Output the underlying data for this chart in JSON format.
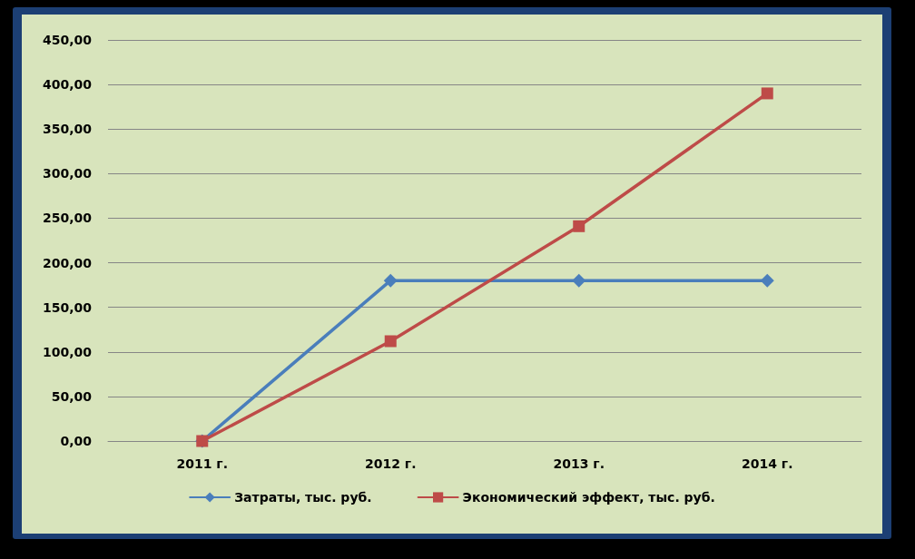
{
  "chart_data": {
    "type": "line",
    "categories": [
      "2011 г.",
      "2012 г.",
      "2013 г.",
      "2014 г."
    ],
    "series": [
      {
        "name": "Затраты, тыс. руб.",
        "color": "#4a7ebb",
        "marker": "diamond",
        "values": [
          0,
          180,
          180,
          180
        ]
      },
      {
        "name": "Экономический эффект, тыс. руб.",
        "color": "#be4b48",
        "marker": "square",
        "values": [
          0,
          112,
          241,
          390
        ]
      }
    ],
    "ylim": [
      0,
      450
    ],
    "yticks": [
      {
        "value": 0,
        "label": "0,00"
      },
      {
        "value": 50,
        "label": "50,00"
      },
      {
        "value": 100,
        "label": "100,00"
      },
      {
        "value": 150,
        "label": "150,00"
      },
      {
        "value": 200,
        "label": "200,00"
      },
      {
        "value": 250,
        "label": "250,00"
      },
      {
        "value": 300,
        "label": "300,00"
      },
      {
        "value": 350,
        "label": "350,00"
      },
      {
        "value": 400,
        "label": "400,00"
      },
      {
        "value": 450,
        "label": "450,00"
      }
    ],
    "grid": "y",
    "legend": "bottom",
    "line_style": "solid"
  }
}
